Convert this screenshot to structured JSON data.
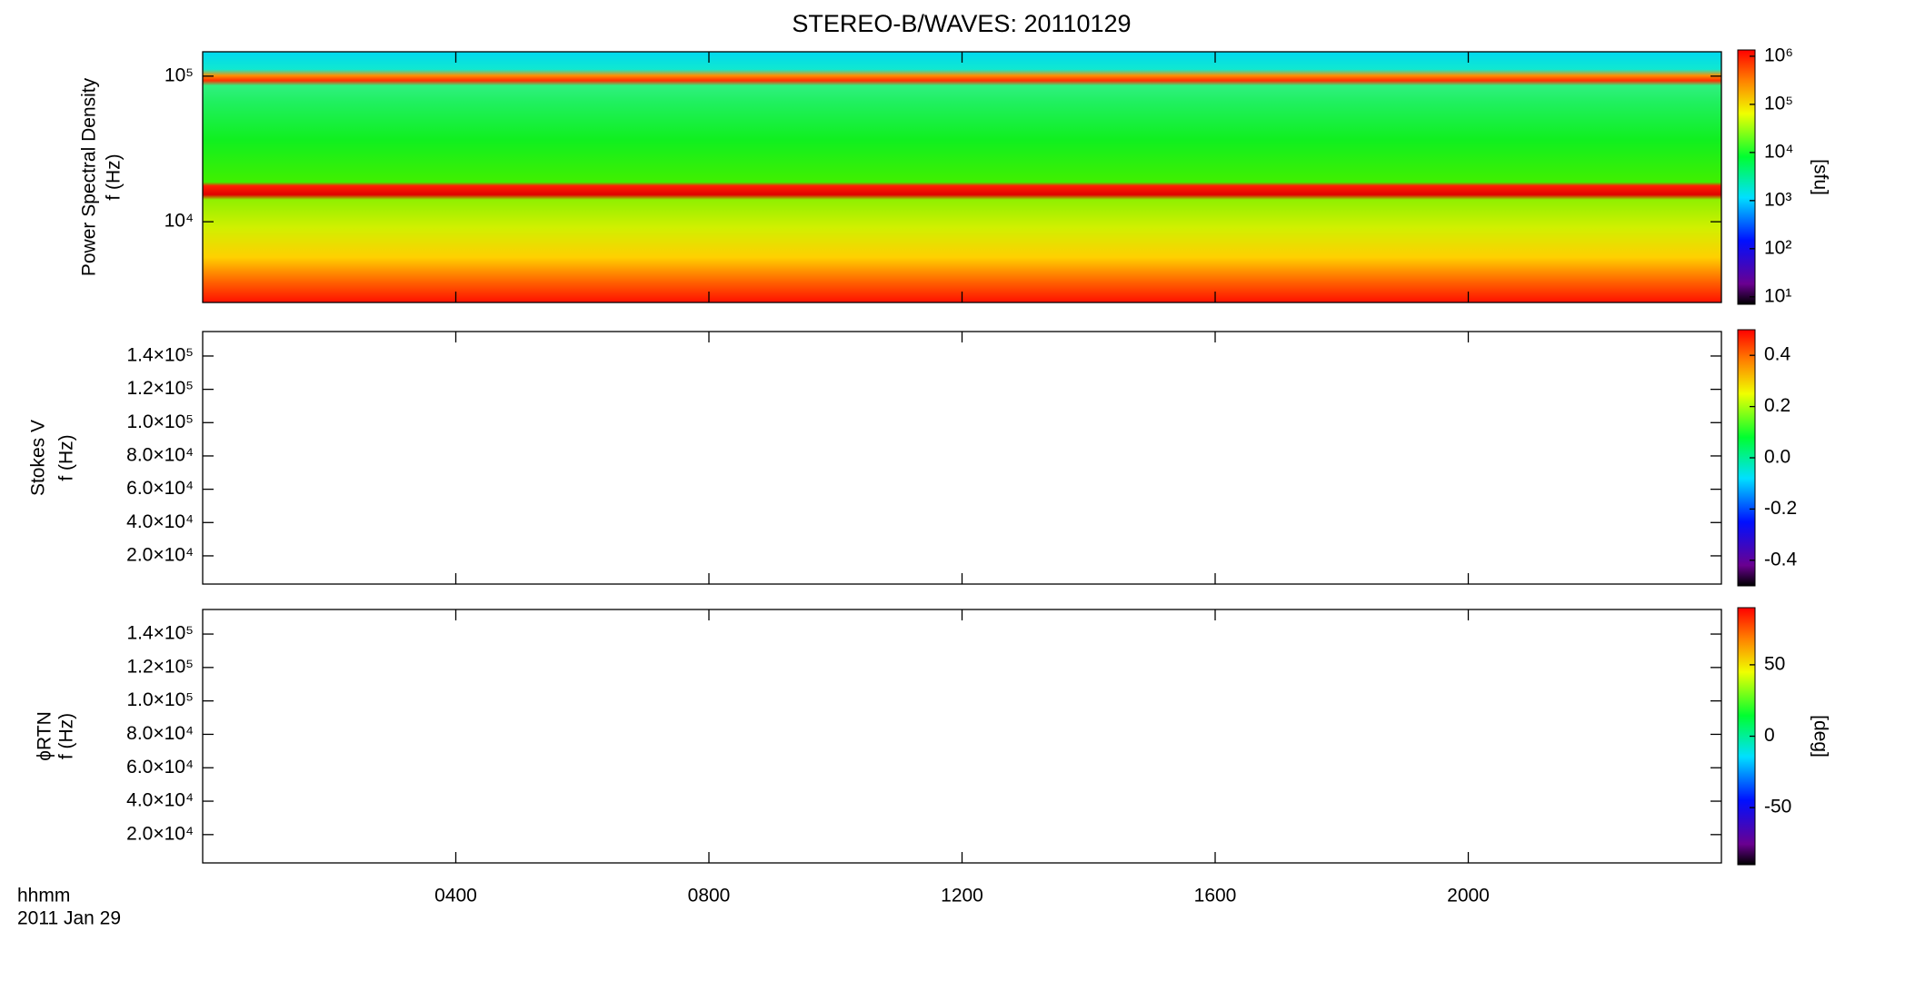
{
  "chart_data": [
    {
      "type": "heatmap",
      "title": "STEREO-B/WAVES: 20110129",
      "ylabel": [
        "Power Spectral Density",
        "f (Hz)"
      ],
      "ylog": true,
      "ylim": [
        2790,
        147000
      ],
      "yticks": [
        {
          "value": 10000,
          "label": "10⁴"
        },
        {
          "value": 100000,
          "label": "10⁵"
        }
      ],
      "colorbar": {
        "label": "[sfu]",
        "log": true,
        "lim": [
          7,
          1350000
        ],
        "ticks": [
          {
            "value": 10,
            "label": "10¹"
          },
          {
            "value": 100,
            "label": "10²"
          },
          {
            "value": 1000,
            "label": "10³"
          },
          {
            "value": 10000,
            "label": "10⁴"
          },
          {
            "value": 100000,
            "label": "10⁵"
          },
          {
            "value": 1000000,
            "label": "10⁶"
          }
        ]
      }
    },
    {
      "type": "heatmap",
      "ylabel": [
        "Stokes V",
        "f (Hz)"
      ],
      "ylog": false,
      "ylim": [
        3060,
        154700
      ],
      "yticks": [
        {
          "value": 20000,
          "label": "2.0×10⁴"
        },
        {
          "value": 40000,
          "label": "4.0×10⁴"
        },
        {
          "value": 60000,
          "label": "6.0×10⁴"
        },
        {
          "value": 80000,
          "label": "8.0×10⁴"
        },
        {
          "value": 100000,
          "label": "1.0×10⁵"
        },
        {
          "value": 120000,
          "label": "1.2×10⁵"
        },
        {
          "value": 140000,
          "label": "1.4×10⁵"
        }
      ],
      "colorbar": {
        "log": false,
        "lim": [
          -0.5,
          0.5
        ],
        "ticks": [
          -0.4,
          -0.2,
          {
            "value": 0,
            "label": "0.0"
          },
          0.2,
          0.4
        ]
      }
    },
    {
      "type": "heatmap",
      "ylabel": [
        "ϕRTN",
        "f (Hz)"
      ],
      "ylog": false,
      "ylim": [
        3060,
        154700
      ],
      "yticks": [
        {
          "value": 20000,
          "label": "2.0×10⁴"
        },
        {
          "value": 40000,
          "label": "4.0×10⁴"
        },
        {
          "value": 60000,
          "label": "6.0×10⁴"
        },
        {
          "value": 80000,
          "label": "8.0×10⁴"
        },
        {
          "value": 100000,
          "label": "1.0×10⁵"
        },
        {
          "value": 120000,
          "label": "1.2×10⁵"
        },
        {
          "value": 140000,
          "label": "1.4×10⁵"
        }
      ],
      "colorbar": {
        "label": "[deg]",
        "log": false,
        "lim": [
          -90,
          90
        ],
        "ticks": [
          -50,
          0,
          50
        ]
      },
      "xlabel": [
        "hhmm",
        "2011 Jan 29"
      ],
      "xlim": [
        0,
        24
      ],
      "xticks": [
        {
          "value": 4,
          "label": "0400"
        },
        {
          "value": 8,
          "label": "0800"
        },
        {
          "value": 12,
          "label": "1200"
        },
        {
          "value": 16,
          "label": "1600"
        },
        {
          "value": 20,
          "label": "2000"
        }
      ]
    }
  ]
}
